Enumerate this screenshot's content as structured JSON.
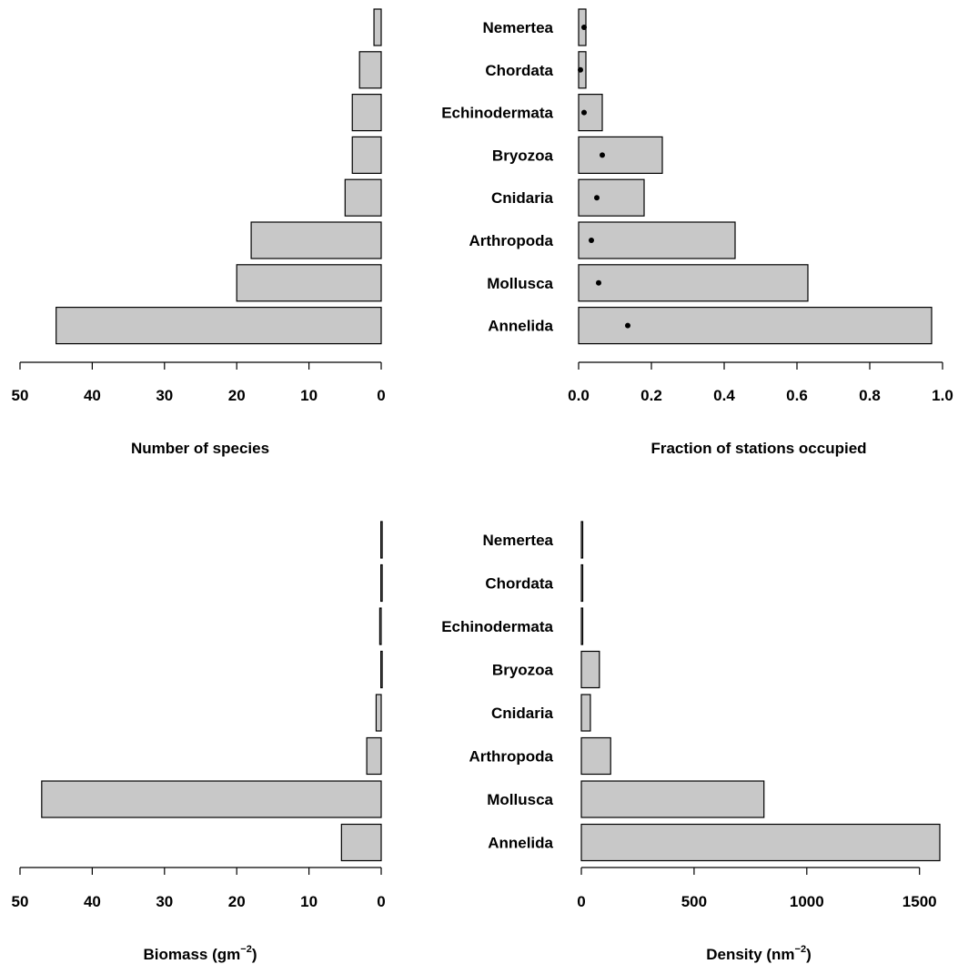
{
  "categories": [
    "Nemertea",
    "Chordata",
    "Echinodermata",
    "Bryozoa",
    "Cnidaria",
    "Arthropoda",
    "Mollusca",
    "Annelida"
  ],
  "chart_data": [
    {
      "type": "bar",
      "orientation": "horizontal-reversed",
      "categories": [
        "Nemertea",
        "Chordata",
        "Echinodermata",
        "Bryozoa",
        "Cnidaria",
        "Arthropoda",
        "Mollusca",
        "Annelida"
      ],
      "values": [
        1,
        3,
        4,
        4,
        5,
        18,
        20,
        45
      ],
      "xlabel": "Number of species",
      "xlim": [
        50,
        0
      ],
      "xticks": [
        "50",
        "40",
        "30",
        "20",
        "10",
        "0"
      ],
      "xtick_values": [
        50,
        40,
        30,
        20,
        10,
        0
      ]
    },
    {
      "type": "bar",
      "orientation": "horizontal",
      "categories": [
        "Nemertea",
        "Chordata",
        "Echinodermata",
        "Bryozoa",
        "Cnidaria",
        "Arthropoda",
        "Mollusca",
        "Annelida"
      ],
      "values": [
        0.02,
        0.02,
        0.065,
        0.23,
        0.18,
        0.43,
        0.63,
        0.97
      ],
      "points": [
        0.015,
        0.005,
        0.015,
        0.065,
        0.05,
        0.035,
        0.055,
        0.135
      ],
      "xlabel": "Fraction of stations occupied",
      "xlim": [
        0,
        1
      ],
      "xticks": [
        "0.0",
        "0.2",
        "0.4",
        "0.6",
        "0.8",
        "1.0"
      ],
      "xtick_values": [
        0,
        0.2,
        0.4,
        0.6,
        0.8,
        1.0
      ]
    },
    {
      "type": "bar",
      "orientation": "horizontal-reversed",
      "categories": [
        "Nemertea",
        "Chordata",
        "Echinodermata",
        "Bryozoa",
        "Cnidaria",
        "Arthropoda",
        "Mollusca",
        "Annelida"
      ],
      "values": [
        0.05,
        0.05,
        0.2,
        0.05,
        0.7,
        2,
        47,
        5.5
      ],
      "xlabel": "Biomass (gm",
      "xlabel_sup": "−2",
      "xlabel_tail": ")",
      "xlim": [
        50,
        0
      ],
      "xticks": [
        "50",
        "40",
        "30",
        "20",
        "10",
        "0"
      ],
      "xtick_values": [
        50,
        40,
        30,
        20,
        10,
        0
      ]
    },
    {
      "type": "bar",
      "orientation": "horizontal",
      "categories": [
        "Nemertea",
        "Chordata",
        "Echinodermata",
        "Bryozoa",
        "Cnidaria",
        "Arthropoda",
        "Mollusca",
        "Annelida"
      ],
      "values": [
        5,
        5,
        5,
        80,
        40,
        130,
        810,
        1590
      ],
      "xlabel": "Density (nm",
      "xlabel_sup": "−2",
      "xlabel_tail": ")",
      "xlim": [
        0,
        1590
      ],
      "xticks": [
        "0",
        "500",
        "1000",
        "1500"
      ],
      "xtick_values": [
        0,
        500,
        1000,
        1500
      ]
    }
  ]
}
